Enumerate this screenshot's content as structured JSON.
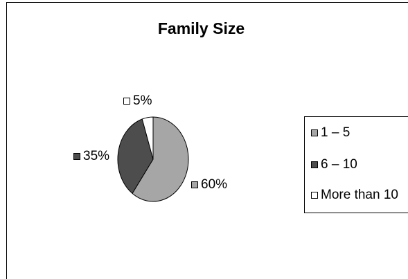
{
  "chart_data": {
    "type": "pie",
    "title": "Family Size",
    "categories": [
      "1 – 5",
      "6 – 10",
      "More than 10"
    ],
    "values": [
      60,
      35,
      5
    ],
    "value_labels": [
      "60%",
      "35%",
      "5%"
    ],
    "colors": [
      "#a6a6a6",
      "#4d4d4d",
      "#ffffff"
    ],
    "legend": {
      "position": "right",
      "entries": [
        "1 – 5",
        "6 – 10",
        "More than 10"
      ]
    }
  }
}
